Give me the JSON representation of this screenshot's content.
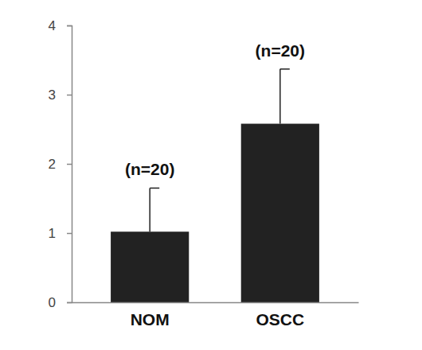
{
  "chart_data": {
    "type": "bar",
    "categories": [
      "NOM",
      "OSCC"
    ],
    "values": [
      1.02,
      2.58
    ],
    "errors": [
      0.63,
      0.79
    ],
    "annotations": [
      "(n=20)",
      "(n=20)"
    ],
    "color": "#222222",
    "ylim": [
      0,
      4
    ],
    "yticks": [
      0,
      1,
      2,
      3,
      4
    ],
    "grid": false
  }
}
